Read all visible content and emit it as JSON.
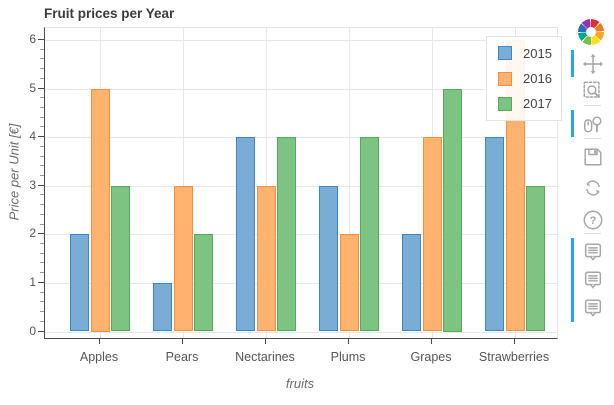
{
  "chart_data": {
    "type": "bar",
    "title": "Fruit prices per Year",
    "xlabel": "fruits",
    "ylabel": "Price per Unit [€]",
    "categories": [
      "Apples",
      "Pears",
      "Nectarines",
      "Plums",
      "Grapes",
      "Strawberries"
    ],
    "series": [
      {
        "name": "2015",
        "values": [
          2,
          1,
          4,
          3,
          2,
          4
        ],
        "fill": "#79add5",
        "edge": "#3d87c0"
      },
      {
        "name": "2016",
        "values": [
          5,
          3,
          3,
          2,
          4,
          6
        ],
        "fill": "#ffb36e",
        "edge": "#f78f3f"
      },
      {
        "name": "2017",
        "values": [
          3,
          2,
          4,
          4,
          5,
          3
        ],
        "fill": "#7dc482",
        "edge": "#55a85c"
      }
    ],
    "ylim": [
      0,
      6
    ],
    "yticks": [
      0,
      1,
      2,
      3,
      4,
      5,
      6
    ],
    "grid": true,
    "legend_position": "top_right"
  },
  "legend": {
    "items": [
      {
        "label": "2015",
        "fill": "#79add5",
        "edge": "#3d87c0"
      },
      {
        "label": "2016",
        "fill": "#ffb36e",
        "edge": "#f78f3f"
      },
      {
        "label": "2017",
        "fill": "#7dc482",
        "edge": "#55a85c"
      }
    ]
  },
  "toolbar": {
    "logo": "bokeh-logo",
    "active_color": "#26a9e0",
    "tools": [
      {
        "name": "pan",
        "active": true
      },
      {
        "name": "box-zoom",
        "active": false
      },
      {
        "name": "wheel-zoom",
        "active": true
      },
      {
        "name": "save",
        "active": false
      },
      {
        "name": "reset",
        "active": false
      },
      {
        "name": "help",
        "active": false
      },
      {
        "name": "hover",
        "active": true
      },
      {
        "name": "hover",
        "active": true
      },
      {
        "name": "hover",
        "active": true
      }
    ]
  }
}
